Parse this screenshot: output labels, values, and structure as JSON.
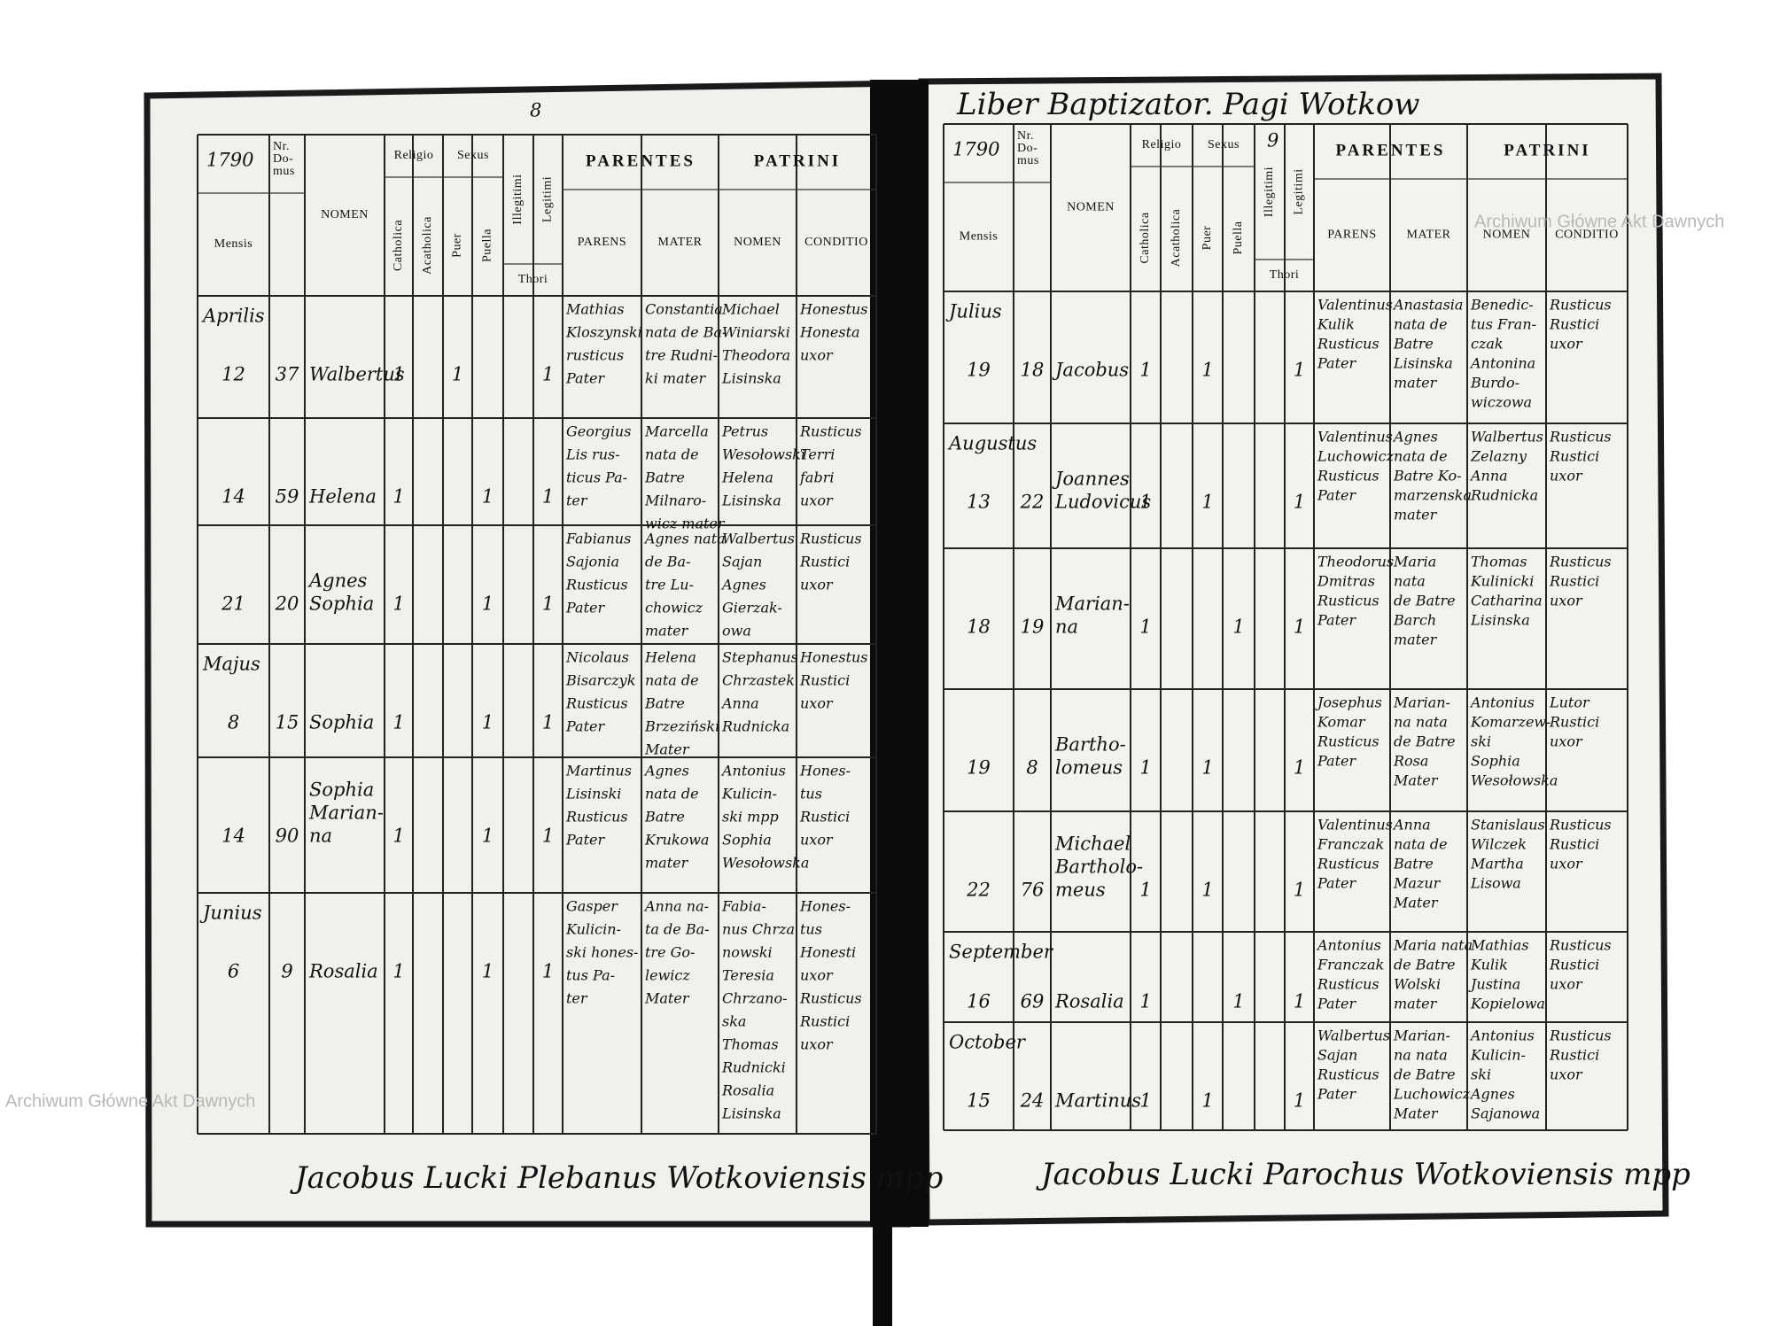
{
  "watermark": "Archiwum Główne Akt Dawnych",
  "register_headers": {
    "nr_domus": [
      "Nr.",
      "Do-",
      "mus"
    ],
    "mensis": "Mensis",
    "nomen": "NOMEN",
    "religio": "Religio",
    "sexus": "Sexus",
    "catholica": "Catholica",
    "acatholica": "Acatholica",
    "puer": "Puer",
    "puella": "Puella",
    "illegitimi": "Illegitimi",
    "legitimi": "Legitimi",
    "thori": "Thori",
    "parentes": "PARENTES",
    "parens": "PARENS",
    "mater": "MATER",
    "patrini": "PATRINI",
    "patrini_nomen": "NOMEN",
    "conditio": "CONDITIO"
  },
  "left_page": {
    "page_number": "8",
    "year": "1790",
    "rows": [
      {
        "month": "Aprilis",
        "day": "12",
        "house": "37",
        "name": [
          "Walbertus"
        ],
        "catholica": "1",
        "puer": "1",
        "legitimi": "1",
        "parens": [
          "Mathias",
          "Kloszynski",
          "rusticus",
          "Pater"
        ],
        "mater": [
          "Constantia",
          "nata de Ba-",
          "tre Rudni-",
          "ki mater"
        ],
        "patrini": [
          "Michael",
          "Winiarski",
          "Theodora",
          "Lisinska"
        ],
        "conditio": [
          "Honestus",
          "Honesta",
          "uxor"
        ]
      },
      {
        "day": "14",
        "house": "59",
        "name": [
          "Helena"
        ],
        "catholica": "1",
        "puella": "1",
        "legitimi": "1",
        "parens": [
          "Georgius",
          "Lis rus-",
          "ticus Pa-",
          "ter"
        ],
        "mater": [
          "Marcella",
          "nata de",
          "Batre",
          "Milnaro-",
          "wicz mater"
        ],
        "patrini": [
          "Petrus",
          "Wesołowski",
          "Helena",
          "Lisinska"
        ],
        "conditio": [
          "Rusticus",
          "Terri",
          "fabri",
          "uxor"
        ]
      },
      {
        "day": "21",
        "house": "20",
        "name": [
          "Agnes",
          "Sophia"
        ],
        "catholica": "1",
        "puella": "1",
        "legitimi": "1",
        "parens": [
          "Fabianus",
          "Sajonia",
          "Rusticus",
          "Pater"
        ],
        "mater": [
          "Agnes nata",
          "de Ba-",
          "tre Lu-",
          "chowicz",
          "mater"
        ],
        "patrini": [
          "Walbertus",
          "Sajan",
          "Agnes",
          "Gierzak-",
          "owa"
        ],
        "conditio": [
          "Rusticus",
          "Rustici",
          "uxor"
        ]
      },
      {
        "month": "Majus",
        "day": "8",
        "house": "15",
        "name": [
          "Sophia"
        ],
        "catholica": "1",
        "puella": "1",
        "legitimi": "1",
        "parens": [
          "Nicolaus",
          "Bisarczyk",
          "Rusticus",
          "Pater"
        ],
        "mater": [
          "Helena",
          "nata de",
          "Batre",
          "Brzeziński",
          "Mater"
        ],
        "patrini": [
          "Stephanus",
          "Chrzastek",
          "Anna",
          "Rudnicka"
        ],
        "conditio": [
          "Honestus",
          "Rustici",
          "uxor"
        ]
      },
      {
        "day": "14",
        "house": "90",
        "name": [
          "Sophia",
          "Marian-",
          "na"
        ],
        "catholica": "1",
        "puella": "1",
        "legitimi": "1",
        "parens": [
          "Martinus",
          "Lisinski",
          "Rusticus",
          "Pater"
        ],
        "mater": [
          "Agnes",
          "nata de",
          "Batre",
          "Krukowa",
          "mater"
        ],
        "patrini": [
          "Antonius",
          "Kulicin-",
          "ski mpp",
          "Sophia",
          "Wesołowska"
        ],
        "conditio": [
          "Hones-",
          "tus",
          "Rustici",
          "uxor"
        ]
      },
      {
        "month": "Junius",
        "day": "6",
        "house": "9",
        "name": [
          "Rosalia"
        ],
        "catholica": "1",
        "puella": "1",
        "legitimi": "1",
        "parens": [
          "Gasper",
          "Kulicin-",
          "ski hones-",
          "tus Pa-",
          "ter"
        ],
        "mater": [
          "Anna na-",
          "ta de Ba-",
          "tre Go-",
          "lewicz",
          "Mater"
        ],
        "patrini": [
          "Fabia-",
          "nus Chrza",
          "nowski",
          "Teresia",
          "Chrzano-",
          "ska",
          "Thomas",
          "Rudnicki",
          "Rosalia",
          "Lisinska"
        ],
        "conditio": [
          "Hones-",
          "tus",
          "Honesti",
          "uxor",
          "Rusticus",
          "Rustici",
          "uxor"
        ]
      }
    ],
    "signature": "Jacobus Lucki Plebanus Wotkoviensis mpp"
  },
  "right_page": {
    "heading": "Liber Baptizator. Pagi Wotkow",
    "page_number": "9",
    "year": "1790",
    "rows": [
      {
        "month": "Julius",
        "day": "19",
        "house": "18",
        "name": [
          "Jacobus"
        ],
        "catholica": "1",
        "puer": "1",
        "legitimi": "1",
        "parens": [
          "Valentinus",
          "Kulik",
          "Rusticus",
          "Pater"
        ],
        "mater": [
          "Anastasia",
          "nata de",
          "Batre",
          "Lisinska",
          "mater"
        ],
        "patrini": [
          "Benedic-",
          "tus Fran-",
          "czak",
          "Antonina",
          "Burdo-",
          "wiczowa"
        ],
        "conditio": [
          "Rusticus",
          "Rustici",
          "uxor"
        ]
      },
      {
        "month": "Augustus",
        "day": "13",
        "house": "22",
        "name": [
          "Joannes",
          "Ludovicus"
        ],
        "catholica": "1",
        "puer": "1",
        "legitimi": "1",
        "parens": [
          "Valentinus",
          "Luchowicz",
          "Rusticus",
          "Pater"
        ],
        "mater": [
          "Agnes",
          "nata de",
          "Batre Ko-",
          "marzenska",
          "mater"
        ],
        "patrini": [
          "Walbertus",
          "Zelazny",
          "Anna",
          "Rudnicka"
        ],
        "conditio": [
          "Rusticus",
          "Rustici",
          "uxor"
        ]
      },
      {
        "day": "18",
        "house": "19",
        "name": [
          "Marian-",
          "na"
        ],
        "catholica": "1",
        "puella": "1",
        "legitimi": "1",
        "parens": [
          "Theodorus",
          "Dmitras",
          "Rusticus",
          "Pater"
        ],
        "mater": [
          "Maria",
          "nata",
          "de Batre",
          "Barch",
          "mater"
        ],
        "patrini": [
          "Thomas",
          "Kulinicki",
          "Catharina",
          "Lisinska"
        ],
        "conditio": [
          "Rusticus",
          "Rustici",
          "uxor"
        ]
      },
      {
        "day": "19",
        "house": "8",
        "name": [
          "Bartho-",
          "lomeus"
        ],
        "catholica": "1",
        "puer": "1",
        "legitimi": "1",
        "parens": [
          "Josephus",
          "Komar",
          "Rusticus",
          "Pater"
        ],
        "mater": [
          "Marian-",
          "na nata",
          "de Batre",
          "Rosa",
          "Mater"
        ],
        "patrini": [
          "Antonius",
          "Komarzew-",
          "ski",
          "Sophia",
          "Wesołowska"
        ],
        "conditio": [
          "Lutor",
          "Rustici",
          "uxor"
        ]
      },
      {
        "day": "22",
        "house": "76",
        "name": [
          "Michael",
          "Bartholo-",
          "meus"
        ],
        "catholica": "1",
        "puer": "1",
        "legitimi": "1",
        "parens": [
          "Valentinus",
          "Franczak",
          "Rusticus",
          "Pater"
        ],
        "mater": [
          "Anna",
          "nata de",
          "Batre",
          "Mazur",
          "Mater"
        ],
        "patrini": [
          "Stanislaus",
          "Wilczek",
          "Martha",
          "Lisowa"
        ],
        "conditio": [
          "Rusticus",
          "Rustici",
          "uxor"
        ]
      },
      {
        "month": "September",
        "day": "16",
        "house": "69",
        "name": [
          "Rosalia"
        ],
        "catholica": "1",
        "puella": "1",
        "legitimi": "1",
        "parens": [
          "Antonius",
          "Franczak",
          "Rusticus",
          "Pater"
        ],
        "mater": [
          "Maria nata",
          "de Batre",
          "Wolski",
          "mater"
        ],
        "patrini": [
          "Mathias",
          "Kulik",
          "Justina",
          "Kopielowa"
        ],
        "conditio": [
          "Rusticus",
          "Rustici",
          "uxor"
        ]
      },
      {
        "month": "October",
        "day": "15",
        "house": "24",
        "name": [
          "Martinus"
        ],
        "catholica": "1",
        "puer": "1",
        "legitimi": "1",
        "parens": [
          "Walbertus",
          "Sajan",
          "Rusticus",
          "Pater"
        ],
        "mater": [
          "Marian-",
          "na nata",
          "de Batre",
          "Luchowicz",
          "Mater"
        ],
        "patrini": [
          "Antonius",
          "Kulicin-",
          "ski",
          "Agnes",
          "Sajanowa"
        ],
        "conditio": [
          "Rusticus",
          "Rustici",
          "uxor"
        ]
      }
    ],
    "signature": "Jacobus Lucki Parochus Wotkoviensis mpp"
  }
}
